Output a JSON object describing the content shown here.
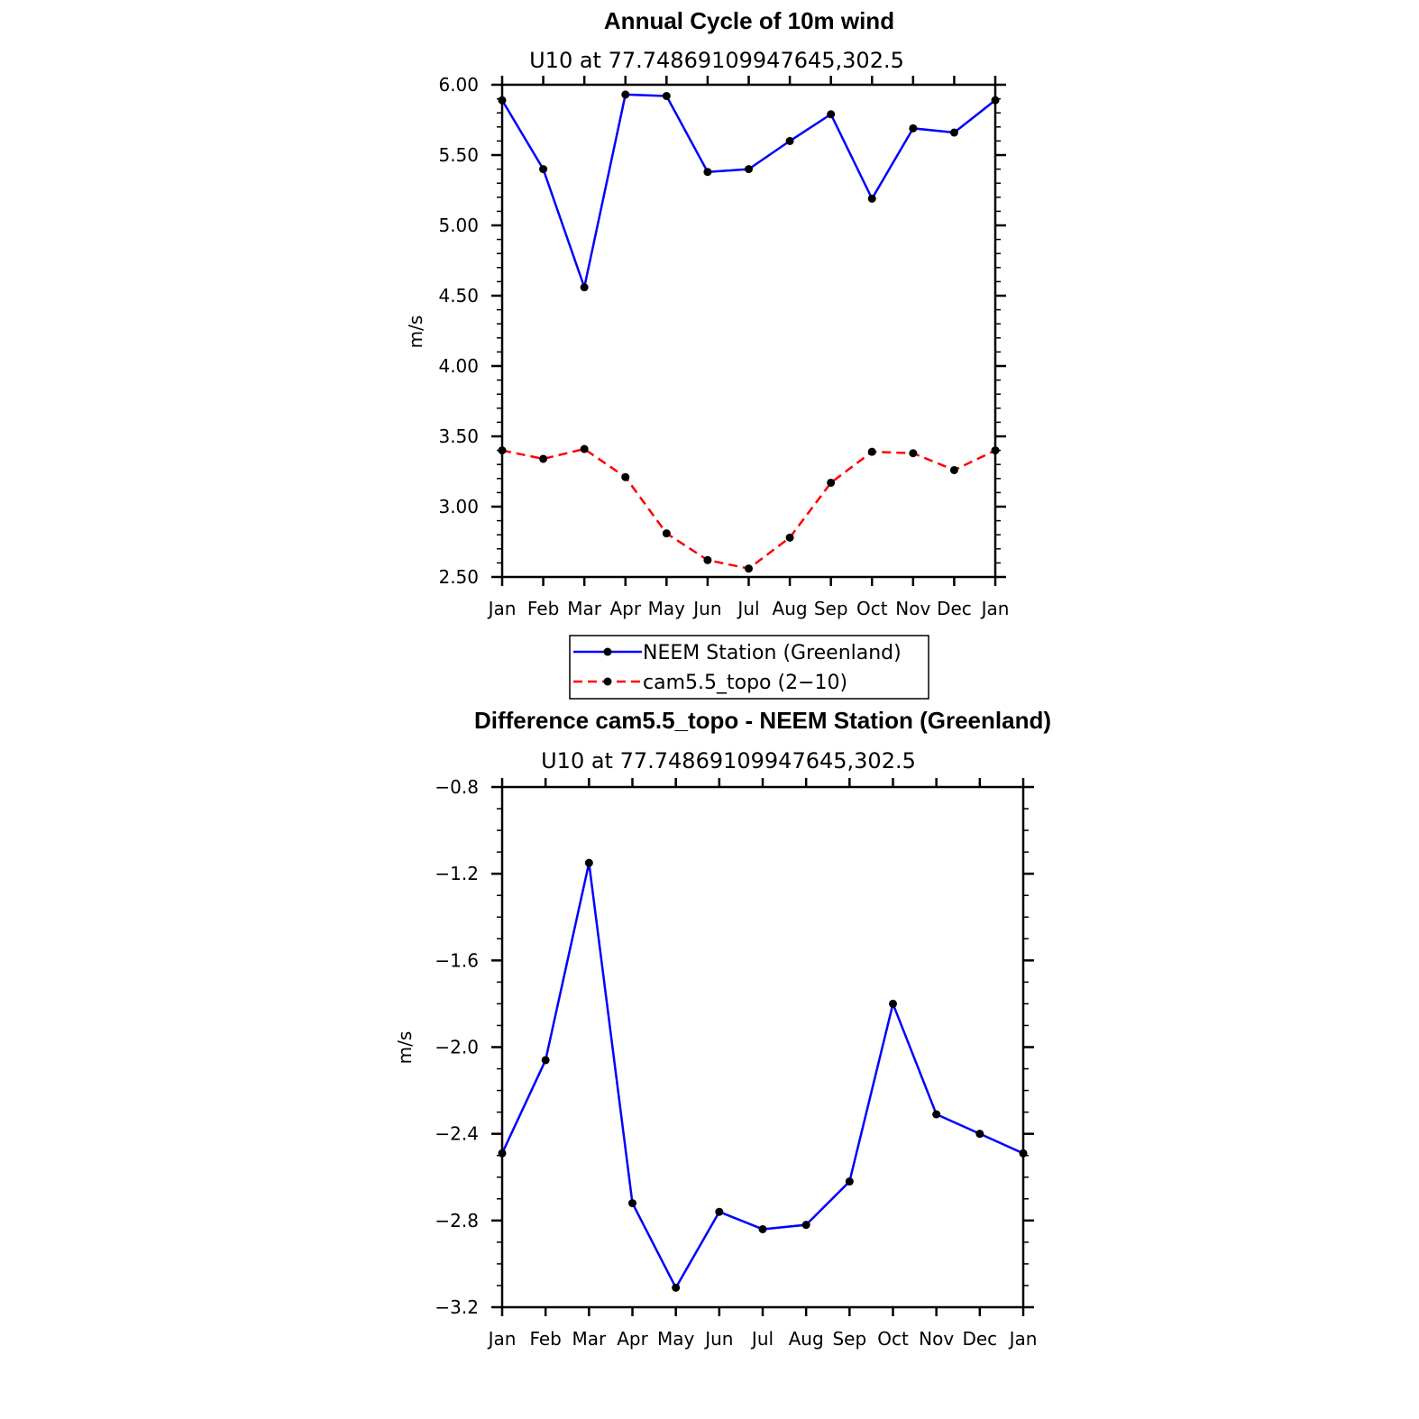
{
  "chart_data": [
    {
      "type": "line",
      "title": "Annual Cycle of 10m wind",
      "subtitle": "U10 at 77.74869109947645,302.5",
      "ylabel": "m/s",
      "xlabel": "",
      "categories": [
        "Jan",
        "Feb",
        "Mar",
        "Apr",
        "May",
        "Jun",
        "Jul",
        "Aug",
        "Sep",
        "Oct",
        "Nov",
        "Dec",
        "Jan"
      ],
      "ylim": [
        2.5,
        6.0
      ],
      "yticks": [
        "6.00",
        "5.50",
        "5.00",
        "4.50",
        "4.00",
        "3.50",
        "3.00",
        "2.50"
      ],
      "grid": false,
      "legend_position": "bottom-center",
      "series": [
        {
          "name": "NEEM Station (Greenland)",
          "color": "#0000ff",
          "style": "solid",
          "values": [
            5.89,
            5.4,
            4.56,
            5.93,
            5.92,
            5.38,
            5.4,
            5.6,
            5.79,
            5.19,
            5.69,
            5.66,
            5.89
          ]
        },
        {
          "name": "cam5.5_topo (2−10)",
          "color": "#ff0000",
          "style": "dashed",
          "values": [
            3.4,
            3.34,
            3.41,
            3.21,
            2.81,
            2.62,
            2.56,
            2.78,
            3.17,
            3.39,
            3.38,
            3.26,
            3.4
          ]
        }
      ]
    },
    {
      "type": "line",
      "title": "Difference cam5.5_topo - NEEM Station (Greenland)",
      "subtitle": "U10 at 77.74869109947645,302.5",
      "ylabel": "m/s",
      "xlabel": "",
      "categories": [
        "Jan",
        "Feb",
        "Mar",
        "Apr",
        "May",
        "Jun",
        "Jul",
        "Aug",
        "Sep",
        "Oct",
        "Nov",
        "Dec",
        "Jan"
      ],
      "ylim": [
        -3.2,
        -0.8
      ],
      "yticks": [
        "−0.8",
        "−1.2",
        "−1.6",
        "−2.0",
        "−2.4",
        "−2.8",
        "−3.2"
      ],
      "grid": false,
      "series": [
        {
          "color": "#0000ff",
          "style": "solid",
          "values": [
            -2.49,
            -2.06,
            -1.15,
            -2.72,
            -3.11,
            -2.76,
            -2.84,
            -2.82,
            -2.62,
            -1.8,
            -2.31,
            -2.4,
            -2.49
          ]
        }
      ]
    }
  ]
}
